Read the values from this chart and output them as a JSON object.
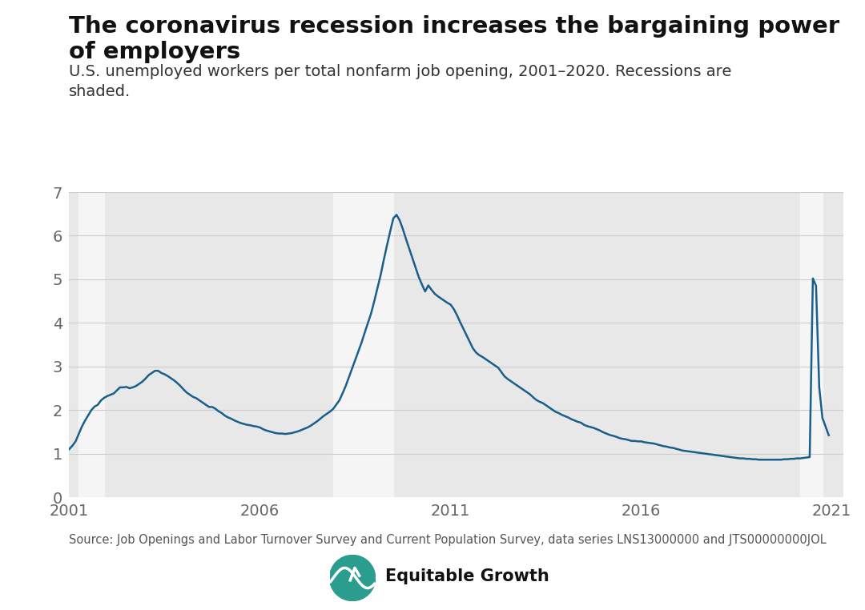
{
  "title": "The coronavirus recession increases the bargaining power of employers",
  "subtitle": "U.S. unemployed workers per total nonfarm job opening, 2001–2020. Recessions are\nshaded.",
  "source": "Source: Job Openings and Labor Turnover Survey and Current Population Survey, data series LNS13000000 and JTS00000000JOL",
  "line_color": "#1a5f8a",
  "line_width": 1.8,
  "background_color": "#ffffff",
  "plot_bg_color": "#e8e8e8",
  "recession_color": "#f5f5f5",
  "recession_alpha": 1.0,
  "recessions": [
    {
      "start": 2001.25,
      "end": 2001.92
    },
    {
      "start": 2007.92,
      "end": 2009.5
    },
    {
      "start": 2020.17,
      "end": 2020.75
    }
  ],
  "ylim": [
    0,
    7
  ],
  "yticks": [
    0,
    1,
    2,
    3,
    4,
    5,
    6,
    7
  ],
  "xlim": [
    2001.0,
    2021.3
  ],
  "xticks": [
    2001,
    2006,
    2011,
    2016,
    2021
  ],
  "title_fontsize": 21,
  "subtitle_fontsize": 14,
  "source_fontsize": 10.5,
  "tick_fontsize": 14,
  "data": {
    "dates": [
      2001.0,
      2001.083,
      2001.167,
      2001.25,
      2001.333,
      2001.417,
      2001.5,
      2001.583,
      2001.667,
      2001.75,
      2001.833,
      2001.917,
      2002.0,
      2002.083,
      2002.167,
      2002.25,
      2002.333,
      2002.417,
      2002.5,
      2002.583,
      2002.667,
      2002.75,
      2002.833,
      2002.917,
      2003.0,
      2003.083,
      2003.167,
      2003.25,
      2003.333,
      2003.417,
      2003.5,
      2003.583,
      2003.667,
      2003.75,
      2003.833,
      2003.917,
      2004.0,
      2004.083,
      2004.167,
      2004.25,
      2004.333,
      2004.417,
      2004.5,
      2004.583,
      2004.667,
      2004.75,
      2004.833,
      2004.917,
      2005.0,
      2005.083,
      2005.167,
      2005.25,
      2005.333,
      2005.417,
      2005.5,
      2005.583,
      2005.667,
      2005.75,
      2005.833,
      2005.917,
      2006.0,
      2006.083,
      2006.167,
      2006.25,
      2006.333,
      2006.417,
      2006.5,
      2006.583,
      2006.667,
      2006.75,
      2006.833,
      2006.917,
      2007.0,
      2007.083,
      2007.167,
      2007.25,
      2007.333,
      2007.417,
      2007.5,
      2007.583,
      2007.667,
      2007.75,
      2007.833,
      2007.917,
      2008.0,
      2008.083,
      2008.167,
      2008.25,
      2008.333,
      2008.417,
      2008.5,
      2008.583,
      2008.667,
      2008.75,
      2008.833,
      2008.917,
      2009.0,
      2009.083,
      2009.167,
      2009.25,
      2009.333,
      2009.417,
      2009.5,
      2009.583,
      2009.667,
      2009.75,
      2009.833,
      2009.917,
      2010.0,
      2010.083,
      2010.167,
      2010.25,
      2010.333,
      2010.417,
      2010.5,
      2010.583,
      2010.667,
      2010.75,
      2010.833,
      2010.917,
      2011.0,
      2011.083,
      2011.167,
      2011.25,
      2011.333,
      2011.417,
      2011.5,
      2011.583,
      2011.667,
      2011.75,
      2011.833,
      2011.917,
      2012.0,
      2012.083,
      2012.167,
      2012.25,
      2012.333,
      2012.417,
      2012.5,
      2012.583,
      2012.667,
      2012.75,
      2012.833,
      2012.917,
      2013.0,
      2013.083,
      2013.167,
      2013.25,
      2013.333,
      2013.417,
      2013.5,
      2013.583,
      2013.667,
      2013.75,
      2013.833,
      2013.917,
      2014.0,
      2014.083,
      2014.167,
      2014.25,
      2014.333,
      2014.417,
      2014.5,
      2014.583,
      2014.667,
      2014.75,
      2014.833,
      2014.917,
      2015.0,
      2015.083,
      2015.167,
      2015.25,
      2015.333,
      2015.417,
      2015.5,
      2015.583,
      2015.667,
      2015.75,
      2015.833,
      2015.917,
      2016.0,
      2016.083,
      2016.167,
      2016.25,
      2016.333,
      2016.417,
      2016.5,
      2016.583,
      2016.667,
      2016.75,
      2016.833,
      2016.917,
      2017.0,
      2017.083,
      2017.167,
      2017.25,
      2017.333,
      2017.417,
      2017.5,
      2017.583,
      2017.667,
      2017.75,
      2017.833,
      2017.917,
      2018.0,
      2018.083,
      2018.167,
      2018.25,
      2018.333,
      2018.417,
      2018.5,
      2018.583,
      2018.667,
      2018.75,
      2018.833,
      2018.917,
      2019.0,
      2019.083,
      2019.167,
      2019.25,
      2019.333,
      2019.417,
      2019.5,
      2019.583,
      2019.667,
      2019.75,
      2019.833,
      2019.917,
      2020.0,
      2020.083,
      2020.167,
      2020.25,
      2020.333,
      2020.417,
      2020.5,
      2020.583,
      2020.667,
      2020.75,
      2020.833,
      2020.917
    ],
    "values": [
      1.1,
      1.18,
      1.28,
      1.45,
      1.62,
      1.76,
      1.88,
      2.0,
      2.08,
      2.12,
      2.22,
      2.28,
      2.32,
      2.35,
      2.38,
      2.45,
      2.52,
      2.52,
      2.53,
      2.5,
      2.52,
      2.55,
      2.6,
      2.65,
      2.72,
      2.8,
      2.85,
      2.9,
      2.9,
      2.85,
      2.82,
      2.78,
      2.73,
      2.68,
      2.62,
      2.55,
      2.47,
      2.4,
      2.35,
      2.3,
      2.27,
      2.22,
      2.17,
      2.12,
      2.07,
      2.07,
      2.03,
      1.97,
      1.93,
      1.87,
      1.83,
      1.8,
      1.76,
      1.73,
      1.7,
      1.68,
      1.66,
      1.65,
      1.63,
      1.62,
      1.6,
      1.56,
      1.53,
      1.51,
      1.49,
      1.47,
      1.46,
      1.46,
      1.45,
      1.46,
      1.47,
      1.49,
      1.51,
      1.54,
      1.57,
      1.6,
      1.64,
      1.69,
      1.74,
      1.8,
      1.86,
      1.91,
      1.96,
      2.02,
      2.12,
      2.22,
      2.38,
      2.55,
      2.75,
      2.95,
      3.15,
      3.35,
      3.55,
      3.78,
      4.0,
      4.22,
      4.5,
      4.8,
      5.1,
      5.45,
      5.78,
      6.1,
      6.4,
      6.48,
      6.35,
      6.15,
      5.92,
      5.7,
      5.48,
      5.26,
      5.05,
      4.88,
      4.72,
      4.86,
      4.76,
      4.67,
      4.61,
      4.56,
      4.51,
      4.46,
      4.42,
      4.32,
      4.18,
      4.02,
      3.87,
      3.72,
      3.57,
      3.42,
      3.32,
      3.26,
      3.22,
      3.17,
      3.12,
      3.07,
      3.02,
      2.97,
      2.87,
      2.77,
      2.71,
      2.66,
      2.61,
      2.56,
      2.51,
      2.46,
      2.41,
      2.36,
      2.29,
      2.23,
      2.19,
      2.16,
      2.11,
      2.06,
      2.01,
      1.96,
      1.93,
      1.89,
      1.86,
      1.83,
      1.79,
      1.76,
      1.73,
      1.71,
      1.66,
      1.63,
      1.61,
      1.59,
      1.56,
      1.53,
      1.49,
      1.46,
      1.43,
      1.41,
      1.39,
      1.36,
      1.34,
      1.33,
      1.31,
      1.29,
      1.29,
      1.28,
      1.28,
      1.26,
      1.25,
      1.24,
      1.23,
      1.21,
      1.19,
      1.17,
      1.16,
      1.14,
      1.13,
      1.11,
      1.09,
      1.07,
      1.06,
      1.05,
      1.04,
      1.03,
      1.02,
      1.01,
      1.0,
      0.99,
      0.98,
      0.97,
      0.96,
      0.95,
      0.94,
      0.93,
      0.92,
      0.91,
      0.9,
      0.89,
      0.89,
      0.88,
      0.88,
      0.87,
      0.87,
      0.86,
      0.86,
      0.86,
      0.86,
      0.86,
      0.86,
      0.86,
      0.86,
      0.87,
      0.87,
      0.88,
      0.88,
      0.89,
      0.89,
      0.9,
      0.91,
      0.92,
      5.02,
      4.85,
      2.52,
      1.82,
      1.62,
      1.42
    ]
  }
}
